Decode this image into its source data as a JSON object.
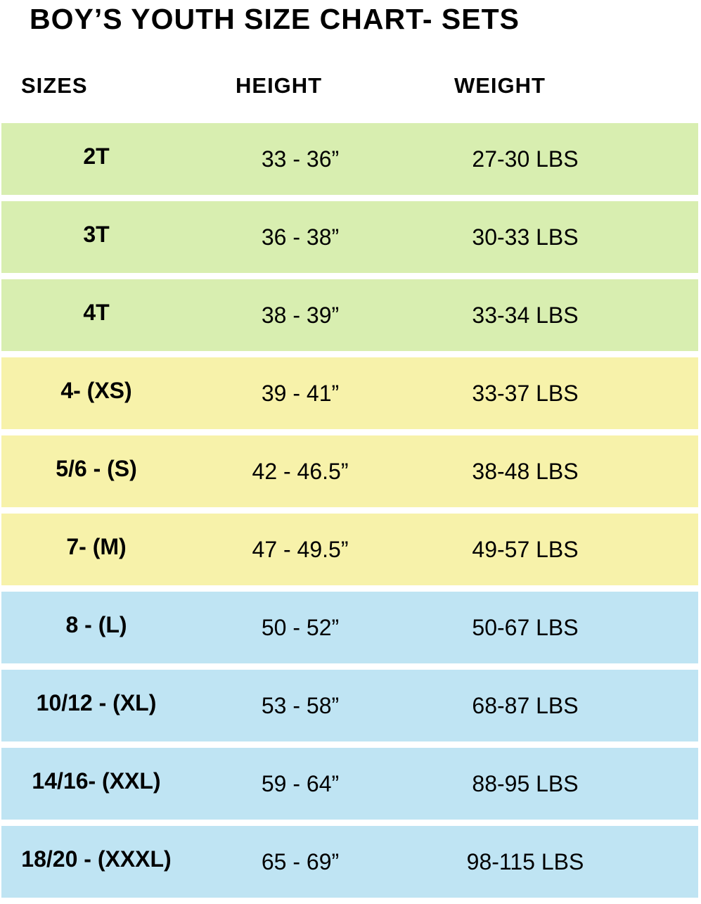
{
  "title": "BOY’S YOUTH SIZE CHART- SETS",
  "headers": {
    "sizes": "SIZES",
    "height": "HEIGHT",
    "weight": "WEIGHT"
  },
  "colors": {
    "toddler": "#d8eeb0",
    "small": "#f7f2aa",
    "large": "#bfe4f3"
  },
  "rows": [
    {
      "size": "2T",
      "height": "33 - 36”",
      "weight": "27-30 LBS",
      "group": "toddler"
    },
    {
      "size": "3T",
      "height": "36 - 38”",
      "weight": "30-33 LBS",
      "group": "toddler"
    },
    {
      "size": "4T",
      "height": "38 - 39”",
      "weight": "33-34 LBS",
      "group": "toddler"
    },
    {
      "size": "4- (XS)",
      "height": "39 - 41”",
      "weight": "33-37 LBS",
      "group": "small"
    },
    {
      "size": "5/6 - (S)",
      "height": "42 - 46.5”",
      "weight": "38-48 LBS",
      "group": "small"
    },
    {
      "size": "7- (M)",
      "height": "47 - 49.5”",
      "weight": "49-57 LBS",
      "group": "small"
    },
    {
      "size": "8 - (L)",
      "height": "50 - 52”",
      "weight": "50-67 LBS",
      "group": "large"
    },
    {
      "size": "10/12 - (XL)",
      "height": "53 - 58”",
      "weight": "68-87 LBS",
      "group": "large"
    },
    {
      "size": "14/16- (XXL)",
      "height": "59 - 64”",
      "weight": "88-95 LBS",
      "group": "large"
    },
    {
      "size": "18/20 - (XXXL)",
      "height": "65 - 69”",
      "weight": "98-115 LBS",
      "group": "large"
    }
  ]
}
